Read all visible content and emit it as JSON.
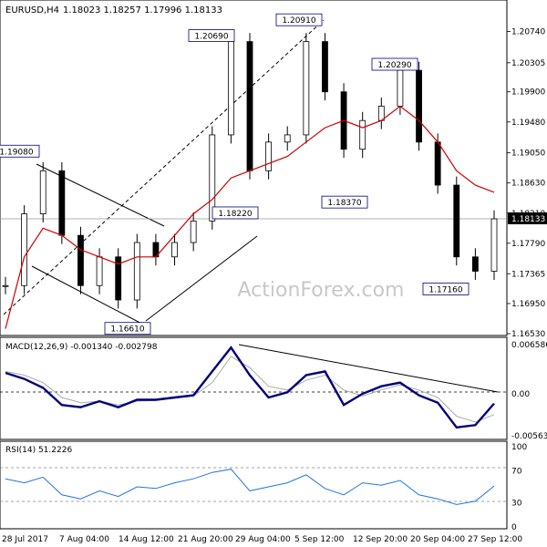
{
  "header": {
    "symbol": "EURUSD,H4",
    "ohlc": "1.18023 1.18257 1.17996 1.18133"
  },
  "watermark": "ActionForex.com",
  "price_labels": {
    "current": "1.18133",
    "annotations": [
      "1.20690",
      "1.20910",
      "1.20290",
      "1.19080",
      "1.18220",
      "1.18370",
      "1.16610",
      "1.17160"
    ]
  },
  "chart_data": [
    {
      "type": "candlestick",
      "title": "EURUSD,H4",
      "ylim": [
        1.1653,
        1.209
      ],
      "yticks": [
        "1.20740",
        "1.20305",
        "1.19900",
        "1.19480",
        "1.19050",
        "1.18630",
        "1.18210",
        "1.17790",
        "1.17365",
        "1.16950",
        "1.16530"
      ],
      "xticks": [
        "28 Jul 2017",
        "7 Aug 04:00",
        "14 Aug 12:00",
        "21 Aug 20:00",
        "29 Aug 04:00",
        "5 Sep 12:00",
        "12 Sep 20:00",
        "20 Sep 04:00",
        "27 Sep 12:00"
      ],
      "x": [
        "28 Jul",
        "1 Aug",
        "3 Aug",
        "7 Aug",
        "9 Aug",
        "11 Aug",
        "14 Aug",
        "16 Aug",
        "18 Aug",
        "21 Aug",
        "23 Aug",
        "25 Aug",
        "29 Aug",
        "31 Aug",
        "1 Sep",
        "5 Sep",
        "7 Sep",
        "11 Sep",
        "12 Sep",
        "14 Sep",
        "18 Sep",
        "20 Sep",
        "22 Sep",
        "25 Sep",
        "26 Sep",
        "27 Sep",
        "28 Sep"
      ],
      "close": [
        1.172,
        1.182,
        1.188,
        1.179,
        1.172,
        1.176,
        1.17,
        1.178,
        1.176,
        1.178,
        1.181,
        1.193,
        1.206,
        1.188,
        1.192,
        1.193,
        1.206,
        1.199,
        1.191,
        1.195,
        1.197,
        1.202,
        1.192,
        1.186,
        1.176,
        1.174,
        1.1813
      ],
      "series": [
        {
          "name": "",
          "values": [
            1.166,
            1.176,
            1.18,
            1.179,
            1.177,
            1.176,
            1.175,
            1.176,
            1.176,
            1.179,
            1.182,
            1.184,
            1.187,
            1.188,
            1.189,
            1.19,
            1.192,
            1.194,
            1.195,
            1.194,
            1.195,
            1.197,
            1.195,
            1.192,
            1.188,
            1.186,
            1.185
          ]
        }
      ],
      "annotations": [
        {
          "label": "1.20690",
          "value": 1.2069
        },
        {
          "label": "1.20910",
          "value": 1.2091
        },
        {
          "label": "1.20290",
          "value": 1.2029
        },
        {
          "label": "1.19080",
          "value": 1.1908
        },
        {
          "label": "1.18220",
          "value": 1.1822
        },
        {
          "label": "1.18370",
          "value": 1.1837
        },
        {
          "label": "1.16610",
          "value": 1.1661
        },
        {
          "label": "1.17160",
          "value": 1.1716
        }
      ],
      "current": 1.18133,
      "grid": false
    },
    {
      "type": "line",
      "title": "MACD(12,26,9) -0.001340 -0.002798",
      "ylim": [
        -0.00563,
        0.00659
      ],
      "yticks": [
        "0.006586",
        "0.00",
        "-0.005634"
      ],
      "series": [
        {
          "name": "",
          "values": [
            0.0028,
            0.002,
            0.0008,
            -0.0015,
            -0.0018,
            -0.001,
            -0.0018,
            -0.0008,
            -0.0008,
            -0.0005,
            -0.0002,
            0.003,
            0.0062,
            0.0025,
            -0.0005,
            0.0002,
            0.0025,
            0.003,
            -0.0015,
            0.0,
            0.001,
            0.0015,
            -0.0002,
            -0.0012,
            -0.0045,
            -0.0042,
            -0.0013
          ]
        },
        {
          "name": "",
          "values": [
            0.003,
            0.0025,
            0.0015,
            -0.0005,
            -0.0012,
            -0.001,
            -0.0015,
            -0.001,
            -0.0009,
            -0.0006,
            -0.0003,
            0.0015,
            0.005,
            0.0035,
            0.001,
            0.0005,
            0.0018,
            0.0025,
            0.0005,
            -0.0003,
            0.0005,
            0.0012,
            0.0005,
            -0.0005,
            -0.003,
            -0.0038,
            -0.0028
          ]
        }
      ]
    },
    {
      "type": "line",
      "title": "RSI(14) 51.2226",
      "ylim": [
        0,
        100
      ],
      "yticks": [
        "100",
        "70",
        "30",
        "0"
      ],
      "series": [
        {
          "name": "",
          "values": [
            60,
            55,
            62,
            40,
            35,
            45,
            38,
            50,
            48,
            55,
            60,
            68,
            72,
            45,
            50,
            55,
            65,
            48,
            40,
            55,
            52,
            58,
            40,
            35,
            28,
            32,
            51
          ]
        }
      ]
    }
  ]
}
